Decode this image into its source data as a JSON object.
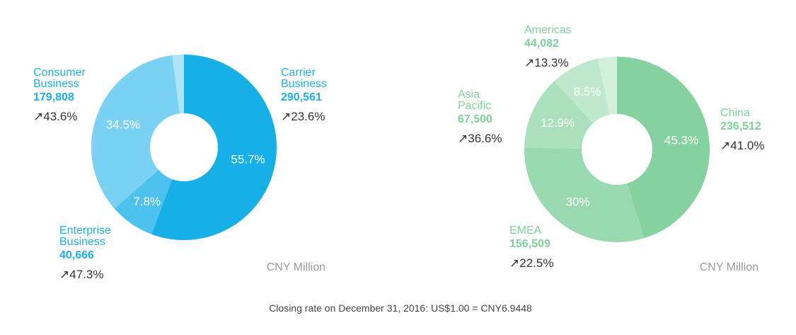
{
  "chart_data": [
    {
      "type": "pie",
      "title": "",
      "unit": "CNY Million",
      "colors": {
        "label": "#1eaee6",
        "text": "#333333"
      },
      "slices": [
        {
          "name": [
            "Carrier",
            "Business"
          ],
          "value": "290,561",
          "share": 55.7,
          "share_label": "55.7%",
          "growth": "↗23.6%",
          "color": "#17b0e6"
        },
        {
          "name": [
            "Enterprise",
            "Business"
          ],
          "value": "40,666",
          "share": 7.8,
          "share_label": "7.8%",
          "growth": "↗47.3%",
          "color": "#4dc2ef"
        },
        {
          "name": [
            "Consumer",
            "Business"
          ],
          "value": "179,808",
          "share": 34.5,
          "share_label": "34.5%",
          "growth": "↗43.6%",
          "color": "#79d1f3"
        },
        {
          "name": [],
          "value": "",
          "share": 2.0,
          "share_label": "",
          "growth": "",
          "color": "#aee3f8"
        }
      ]
    },
    {
      "type": "pie",
      "title": "",
      "unit": "CNY Million",
      "colors": {
        "label": "#7fcf9c",
        "text": "#333333"
      },
      "slices": [
        {
          "name": [
            "China"
          ],
          "value": "236,512",
          "share": 45.3,
          "share_label": "45.3%",
          "growth": "↗41.0%",
          "color": "#85d1a0"
        },
        {
          "name": [
            "EMEA"
          ],
          "value": "156,509",
          "share": 30,
          "share_label": "30%",
          "growth": "↗22.5%",
          "color": "#99d9af"
        },
        {
          "name": [
            "Asia",
            "Pacific"
          ],
          "value": "67,500",
          "share": 12.9,
          "share_label": "12.9%",
          "growth": "↗36.6%",
          "color": "#abe0bd"
        },
        {
          "name": [
            "Americas"
          ],
          "value": "44,082",
          "share": 8.5,
          "share_label": "8.5%",
          "growth": "↗13.3%",
          "color": "#bfe8cd"
        },
        {
          "name": [],
          "value": "",
          "share": 3.3,
          "share_label": "",
          "growth": "",
          "color": "#d3f0dc"
        }
      ]
    }
  ],
  "footnote": "Closing rate on December 31, 2016: US$1.00 = CNY6.9448"
}
